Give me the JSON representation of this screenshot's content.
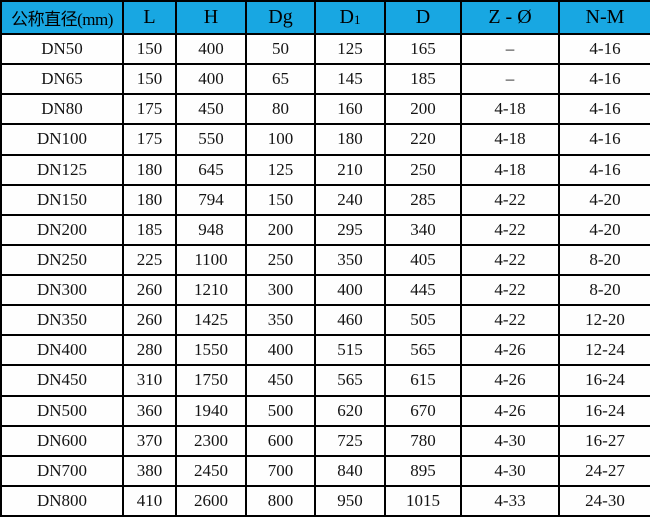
{
  "table": {
    "header_bg": "#18a7e2",
    "headers": [
      {
        "label": "公称直径(mm)"
      },
      {
        "label": "L"
      },
      {
        "label": "H"
      },
      {
        "label": "Dg"
      },
      {
        "label": "D",
        "sub": "1"
      },
      {
        "label": "D"
      },
      {
        "label": "Z - Ø"
      },
      {
        "label": "N-M"
      }
    ],
    "rows": [
      [
        "DN50",
        "150",
        "400",
        "50",
        "125",
        "165",
        "–",
        "4-16"
      ],
      [
        "DN65",
        "150",
        "400",
        "65",
        "145",
        "185",
        "–",
        "4-16"
      ],
      [
        "DN80",
        "175",
        "450",
        "80",
        "160",
        "200",
        "4-18",
        "4-16"
      ],
      [
        "DN100",
        "175",
        "550",
        "100",
        "180",
        "220",
        "4-18",
        "4-16"
      ],
      [
        "DN125",
        "180",
        "645",
        "125",
        "210",
        "250",
        "4-18",
        "4-16"
      ],
      [
        "DN150",
        "180",
        "794",
        "150",
        "240",
        "285",
        "4-22",
        "4-20"
      ],
      [
        "DN200",
        "185",
        "948",
        "200",
        "295",
        "340",
        "4-22",
        "4-20"
      ],
      [
        "DN250",
        "225",
        "1100",
        "250",
        "350",
        "405",
        "4-22",
        "8-20"
      ],
      [
        "DN300",
        "260",
        "1210",
        "300",
        "400",
        "445",
        "4-22",
        "8-20"
      ],
      [
        "DN350",
        "260",
        "1425",
        "350",
        "460",
        "505",
        "4-22",
        "12-20"
      ],
      [
        "DN400",
        "280",
        "1550",
        "400",
        "515",
        "565",
        "4-26",
        "12-24"
      ],
      [
        "DN450",
        "310",
        "1750",
        "450",
        "565",
        "615",
        "4-26",
        "16-24"
      ],
      [
        "DN500",
        "360",
        "1940",
        "500",
        "620",
        "670",
        "4-26",
        "16-24"
      ],
      [
        "DN600",
        "370",
        "2300",
        "600",
        "725",
        "780",
        "4-30",
        "16-27"
      ],
      [
        "DN700",
        "380",
        "2450",
        "700",
        "840",
        "895",
        "4-30",
        "24-27"
      ],
      [
        "DN800",
        "410",
        "2600",
        "800",
        "950",
        "1015",
        "4-33",
        "24-30"
      ]
    ]
  }
}
